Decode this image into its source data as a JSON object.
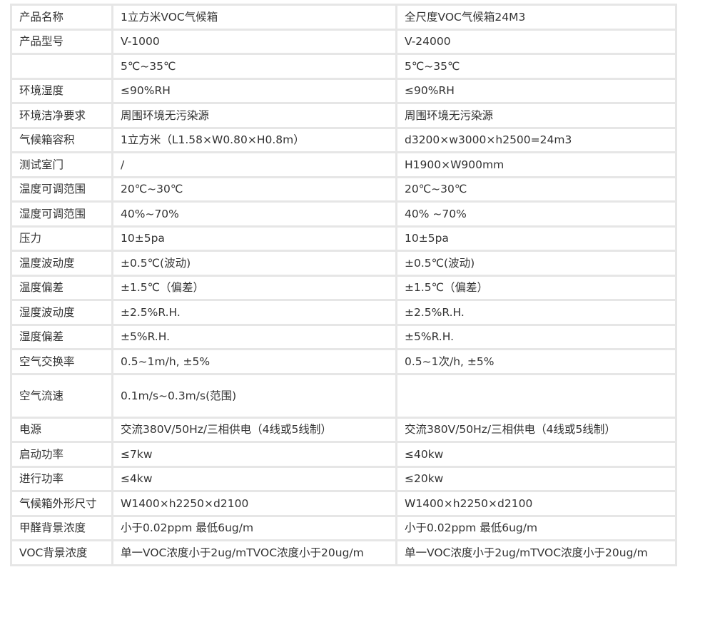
{
  "rows": [
    {
      "label": "产品名称",
      "a": "1立方米VOC气候箱",
      "b": "全尺度VOC气候箱24M3"
    },
    {
      "label": "产品型号",
      "a": "V-1000",
      "b": "V-24000"
    },
    {
      "label": "",
      "a": "5℃~35℃",
      "b": "5℃~35℃"
    },
    {
      "label": "环境湿度",
      "a": "≤90%RH",
      "b": "≤90%RH"
    },
    {
      "label": "环境洁净要求",
      "a": "周围环境无污染源",
      "b": "周围环境无污染源"
    },
    {
      "label": "气候箱容积",
      "a": "1立方米（L1.58×W0.80×H0.8m）",
      "b": "d3200×w3000×h2500=24m3"
    },
    {
      "label": "测试室门",
      "a": "/",
      "b": "H1900×W900mm"
    },
    {
      "label": "温度可调范围",
      "a": "20℃~30℃",
      "b": "20℃~30℃"
    },
    {
      "label": "湿度可调范围",
      "a": "40%~70%",
      "b": "40% ~70%"
    },
    {
      "label": "压力",
      "a": "10±5pa",
      "b": "10±5pa"
    },
    {
      "label": "温度波动度",
      "a": "±0.5℃(波动)",
      "b": "±0.5℃(波动)"
    },
    {
      "label": "温度偏差",
      "a": "±1.5℃（偏差）",
      "b": "±1.5℃（偏差）"
    },
    {
      "label": "湿度波动度",
      "a": "±2.5%R.H.",
      "b": "±2.5%R.H."
    },
    {
      "label": "湿度偏差",
      "a": "±5%R.H.",
      "b": "±5%R.H."
    },
    {
      "label": "空气交换率",
      "a": "0.5~1m/h, ±5%",
      "b": "0.5~1次/h, ±5%"
    },
    {
      "label": "空气流速",
      "a": "0.1m/s~0.3m/s(范围)",
      "b": "",
      "tall": true
    },
    {
      "label": "电源",
      "a": "交流380V/50Hz/三相供电（4线或5线制）",
      "b": "交流380V/50Hz/三相供电（4线或5线制）"
    },
    {
      "label": "启动功率",
      "a": "≤7kw",
      "b": "≤40kw"
    },
    {
      "label": "进行功率",
      "a": "≤4kw",
      "b": "≤20kw"
    },
    {
      "label": "气候箱外形尺寸",
      "a": "W1400×h2250×d2100",
      "b": "W1400×h2250×d2100"
    },
    {
      "label": "甲醛背景浓度",
      "a": "小于0.02ppm 最低6ug/m",
      "b": "小于0.02ppm 最低6ug/m"
    },
    {
      "label": "VOC背景浓度",
      "a": "单一VOC浓度小于2ug/mTVOC浓度小于20ug/m",
      "b": "单一VOC浓度小于2ug/mTVOC浓度小于20ug/m"
    }
  ]
}
